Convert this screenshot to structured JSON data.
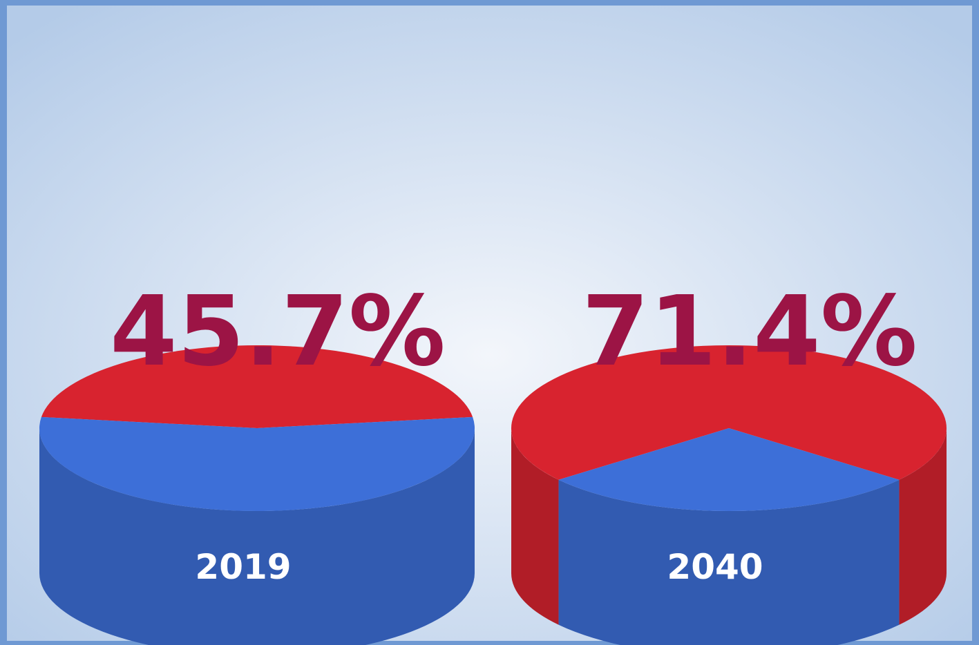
{
  "chart_data": [
    {
      "type": "pie",
      "label": "2019",
      "values": [
        45.7,
        54.3
      ],
      "value_labels": [
        "45.7%",
        null
      ],
      "colors": [
        "#d8232f",
        "#3d6fd8"
      ]
    },
    {
      "type": "pie",
      "label": "2040",
      "values": [
        71.4,
        28.6
      ],
      "value_labels": [
        "71.4%",
        null
      ],
      "colors": [
        "#d8232f",
        "#3d6fd8"
      ]
    }
  ]
}
